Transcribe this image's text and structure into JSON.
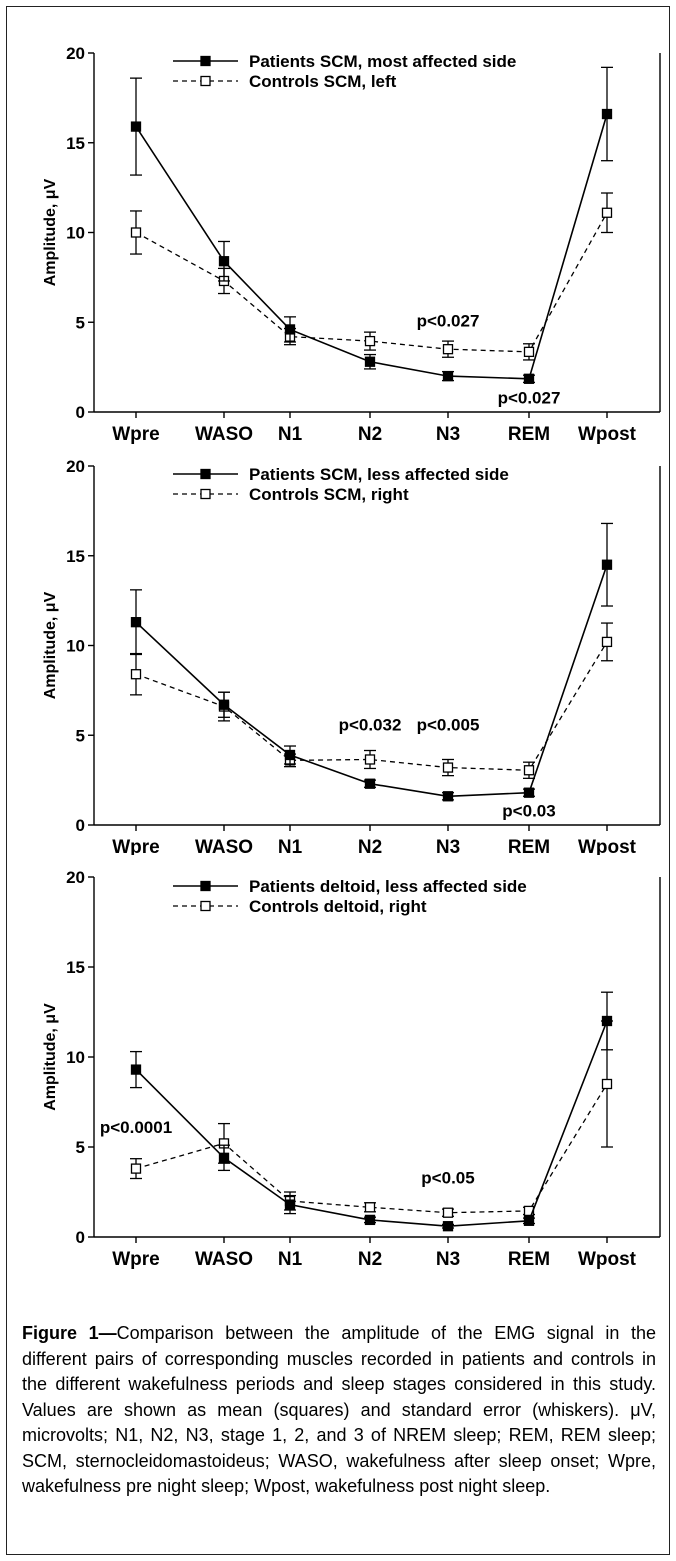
{
  "chart_data": [
    {
      "type": "line",
      "categories": [
        "Wpre",
        "WASO",
        "N1",
        "N2",
        "N3",
        "REM",
        "Wpost"
      ],
      "ylabel": "Amplitude, μV",
      "ylim": [
        0,
        20
      ],
      "yticks": [
        "0",
        "5",
        "10",
        "15",
        "20"
      ],
      "legend_position": "top-center",
      "series": [
        {
          "name": "Patients SCM, most affected side",
          "marker": "filled-square",
          "line": "solid",
          "values": [
            15.9,
            8.4,
            4.6,
            2.8,
            2.0,
            1.85,
            16.6
          ],
          "errors": [
            2.7,
            1.1,
            0.7,
            0.4,
            0.25,
            0.2,
            2.6
          ]
        },
        {
          "name": "Controls SCM, left",
          "marker": "open-square",
          "line": "dashed",
          "values": [
            10.0,
            7.3,
            4.2,
            3.95,
            3.5,
            3.35,
            11.1
          ],
          "errors": [
            1.2,
            0.7,
            0.45,
            0.5,
            0.45,
            0.45,
            1.1
          ]
        }
      ],
      "annotations": [
        {
          "text": "p<0.027",
          "category": "N3",
          "y": 5.1
        },
        {
          "text": "p<0.027",
          "category": "REM",
          "y": 0.8
        }
      ]
    },
    {
      "type": "line",
      "categories": [
        "Wpre",
        "WASO",
        "N1",
        "N2",
        "N3",
        "REM",
        "Wpost"
      ],
      "ylabel": "Amplitude, μV",
      "ylim": [
        0,
        20
      ],
      "yticks": [
        "0",
        "5",
        "10",
        "15",
        "20"
      ],
      "legend_position": "top-center",
      "series": [
        {
          "name": "Patients SCM, less affected side",
          "marker": "filled-square",
          "line": "solid",
          "values": [
            11.3,
            6.7,
            3.9,
            2.3,
            1.6,
            1.8,
            14.5
          ],
          "errors": [
            1.8,
            0.7,
            0.5,
            0.2,
            0.2,
            0.2,
            2.3
          ]
        },
        {
          "name": "Controls SCM, right",
          "marker": "open-square",
          "line": "dashed",
          "values": [
            8.4,
            6.6,
            3.6,
            3.65,
            3.2,
            3.05,
            10.2
          ],
          "errors": [
            1.15,
            0.8,
            0.35,
            0.5,
            0.45,
            0.45,
            1.05
          ]
        }
      ],
      "annotations": [
        {
          "text": "p<0.032",
          "category": "N2",
          "y": 5.6
        },
        {
          "text": "p<0.005",
          "category": "N3",
          "y": 5.6
        },
        {
          "text": "p<0.03",
          "category": "REM",
          "y": 0.8
        }
      ]
    },
    {
      "type": "line",
      "categories": [
        "Wpre",
        "WASO",
        "N1",
        "N2",
        "N3",
        "REM",
        "Wpost"
      ],
      "ylabel": "Amplitude, μV",
      "ylim": [
        0,
        20
      ],
      "yticks": [
        "0",
        "5",
        "10",
        "15",
        "20"
      ],
      "legend_position": "top-center",
      "series": [
        {
          "name": "Patients deltoid, less affected side",
          "marker": "filled-square",
          "line": "solid",
          "values": [
            9.3,
            4.4,
            1.8,
            0.95,
            0.6,
            0.9,
            12.0
          ],
          "errors": [
            1.0,
            0.7,
            0.5,
            0.15,
            0.1,
            0.15,
            1.6
          ]
        },
        {
          "name": "Controls deltoid, right",
          "marker": "open-square",
          "line": "dashed",
          "values": [
            3.8,
            5.2,
            2.0,
            1.65,
            1.35,
            1.45,
            8.5
          ],
          "errors": [
            0.55,
            1.1,
            0.5,
            0.25,
            0.2,
            0.2,
            3.5
          ]
        }
      ],
      "annotations": [
        {
          "text": "p<0.0001",
          "category": "Wpre",
          "y": 6.1
        },
        {
          "text": "p<0.05",
          "category": "N3",
          "y": 3.3
        }
      ]
    }
  ],
  "caption": {
    "label": "Figure 1—",
    "text": "Comparison between the amplitude of the EMG signal in the different pairs of corresponding muscles recorded in patients and controls in the different wakefulness periods and sleep stages considered in this study. Values are shown as mean (squares) and standard error (whiskers). μV, microvolts; N1, N2, N3, stage 1, 2, and 3 of NREM sleep; REM, REM sleep; SCM, sternocleidomastoideus; WASO, wakefulness after sleep onset; Wpre, wakefulness pre night sleep; Wpost, wakefulness post night sleep."
  }
}
